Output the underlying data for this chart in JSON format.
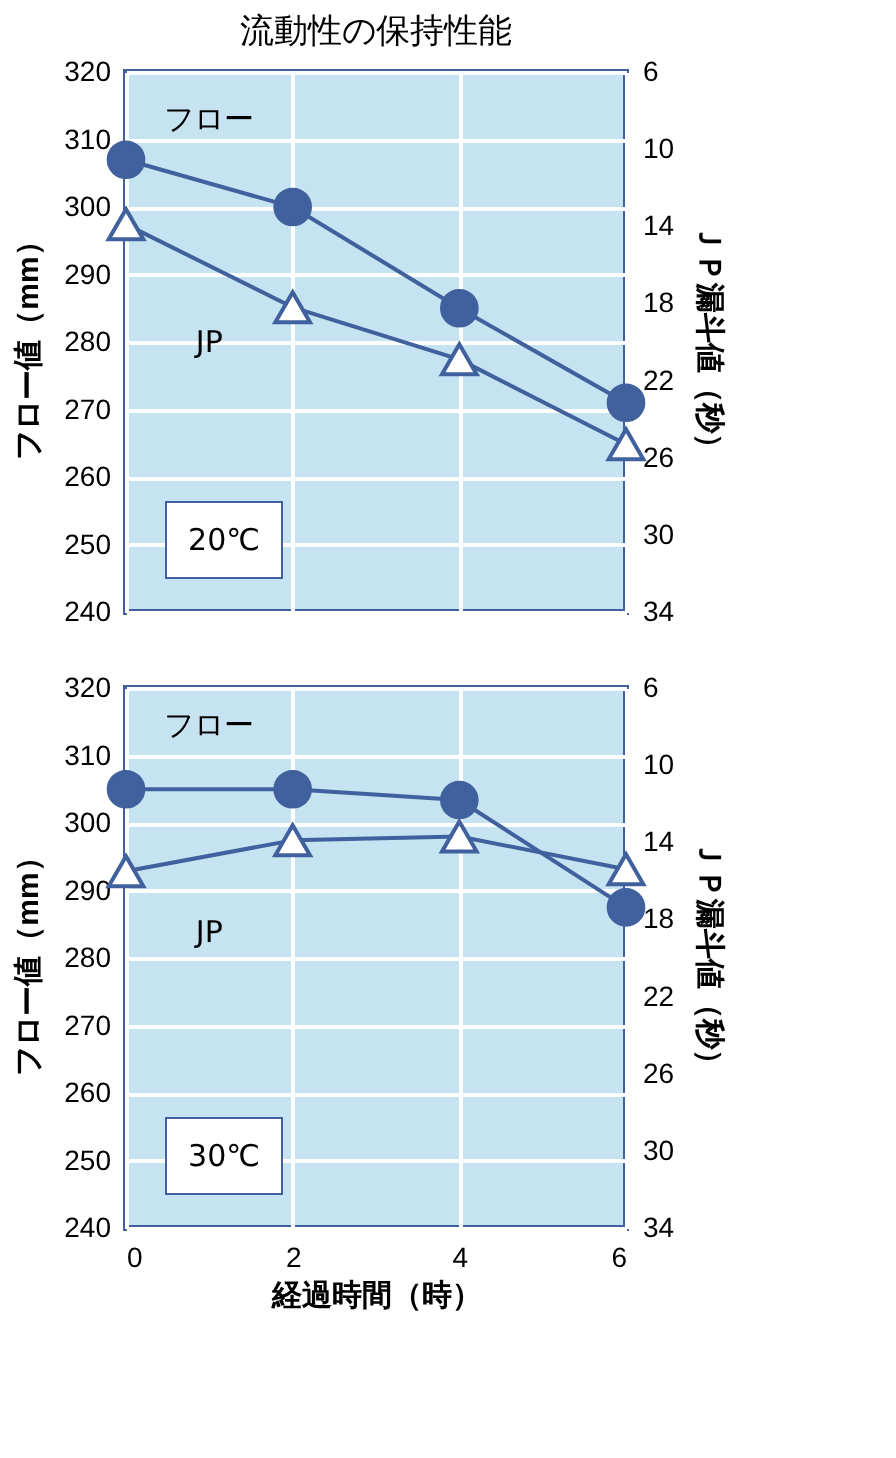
{
  "chart_data": [
    {
      "type": "line",
      "title": "流動性の保持性能",
      "x": [
        0,
        2,
        4,
        6
      ],
      "xlim": [
        0,
        6
      ],
      "xticks": [
        0,
        2,
        4,
        6
      ],
      "ylim": [
        240,
        320
      ],
      "yticks": [
        240,
        250,
        260,
        270,
        280,
        290,
        300,
        310,
        320
      ],
      "y2lim": [
        34,
        6
      ],
      "y2ticks": [
        6,
        10,
        14,
        18,
        22,
        26,
        30,
        34
      ],
      "ylabel": "フロー値（mm）",
      "y2label": "ＪＰ漏斗値（秒）",
      "grid": true,
      "tick_labels": "y",
      "annotations": [
        "20℃"
      ],
      "series": [
        {
          "name": "フロー",
          "color": "#41609e",
          "marker": "circle",
          "values": [
            307,
            300,
            285,
            271
          ]
        },
        {
          "name": "JP",
          "color": "#41609e",
          "marker": "triangle",
          "axis": "y2",
          "values": [
            13.9,
            18.2,
            20.9,
            25.3
          ]
        }
      ]
    },
    {
      "type": "line",
      "x": [
        0,
        2,
        4,
        6
      ],
      "xlim": [
        0,
        6
      ],
      "xticks": [
        0,
        2,
        4,
        6
      ],
      "ylim": [
        240,
        320
      ],
      "yticks": [
        240,
        250,
        260,
        270,
        280,
        290,
        300,
        310,
        320
      ],
      "y2lim": [
        34,
        6
      ],
      "y2ticks": [
        6,
        10,
        14,
        18,
        22,
        26,
        30,
        34
      ],
      "xlabel": "経過時間（時）",
      "ylabel": "フロー値（mm）",
      "y2label": "ＪＰ漏斗値（秒）",
      "grid": true,
      "annotations": [
        "30℃"
      ],
      "series": [
        {
          "name": "フロー",
          "color": "#41609e",
          "marker": "circle",
          "values": [
            305,
            305,
            303.4,
            287.5
          ]
        },
        {
          "name": "JP",
          "color": "#41609e",
          "marker": "triangle",
          "axis": "y2",
          "values": [
            15.5,
            13.9,
            13.7,
            15.4
          ]
        }
      ]
    }
  ]
}
